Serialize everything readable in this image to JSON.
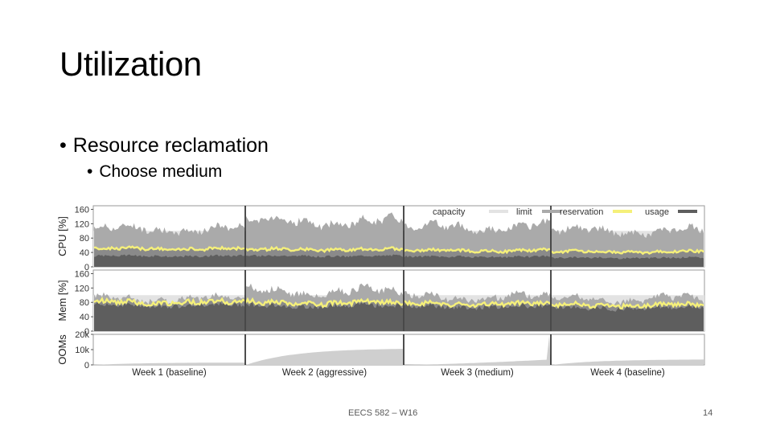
{
  "slide": {
    "title": "Utilization",
    "bullet1": "Resource reclamation",
    "bullet2": "Choose medium",
    "footer_center": "EECS 582 – W16",
    "page_number": "14"
  },
  "chart_data": {
    "type": "area",
    "legend": [
      "capacity",
      "limit",
      "reservation",
      "usage"
    ],
    "legend_placement": "top-right",
    "colors": {
      "capacity": "#e3e3e3",
      "limit": "#aaaaaa",
      "reservation": "#f5f07a",
      "usage": "#5e5e5e"
    },
    "weeks": [
      "Week 1 (baseline)",
      "Week 2 (aggressive)",
      "Week 3 (medium)",
      "Week 4 (baseline)"
    ],
    "panels": [
      {
        "ylabel": "CPU [%]",
        "yticks": [
          "160",
          "120",
          "80",
          "40",
          "0"
        ],
        "ylim": [
          0,
          170
        ],
        "series": {
          "capacity": [
            100,
            100,
            100,
            100
          ],
          "limit": [
            105,
            125,
            110,
            100
          ],
          "reservation": [
            50,
            48,
            45,
            42
          ],
          "usage": [
            30,
            30,
            28,
            25
          ]
        }
      },
      {
        "ylabel": "Mem [%]",
        "yticks": [
          "160",
          "120",
          "80",
          "40",
          "0"
        ],
        "ylim": [
          0,
          170
        ],
        "series": {
          "capacity": [
            100,
            100,
            100,
            100
          ],
          "limit": [
            90,
            110,
            95,
            90
          ],
          "reservation": [
            80,
            78,
            75,
            72
          ],
          "usage": [
            72,
            70,
            68,
            65
          ]
        }
      },
      {
        "ylabel": "OOMs",
        "yticks": [
          "20k",
          "10k",
          "0"
        ],
        "ylim": [
          0,
          20000
        ],
        "series": {
          "ooms_start": [
            0,
            0,
            0,
            0
          ],
          "ooms_end": [
            1500,
            10500,
            3500,
            3500
          ]
        }
      }
    ]
  }
}
